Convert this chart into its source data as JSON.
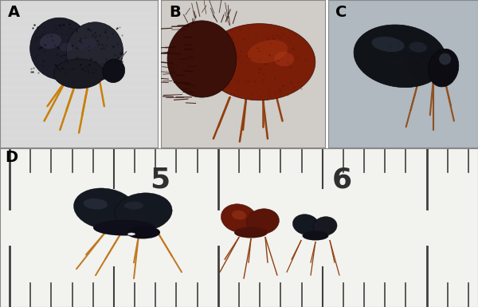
{
  "figure_width": 6.0,
  "figure_height": 3.85,
  "dpi": 100,
  "bg": "#ffffff",
  "label_fs": 14,
  "label_color": "#000000",
  "label_weight": "bold",
  "panelA": {
    "bg": "#d8d8d8",
    "body1": "#1c1c28",
    "body2": "#252530",
    "body3": "#1a1a22",
    "sheen1": "#3a3a55",
    "sheen2": "#2a2a40",
    "leg": "#c8800a",
    "label": "A"
  },
  "panelB": {
    "bg": "#d0ccc8",
    "body_main": "#7a1e08",
    "body_hi": "#a03010",
    "thorax": "#3a1008",
    "hair": "#2a0a04",
    "leg": "#904010",
    "label": "B"
  },
  "panelC": {
    "bg": "#b0b8c0",
    "body": "#101418",
    "sheen": "#303848",
    "leg": "#905020",
    "label": "C"
  },
  "panelD": {
    "bg": "#f4f4f4",
    "ruler_bg": "#f8f8f0",
    "ruler_edge": "#888880",
    "tick": "#404040",
    "num_color": "#303030",
    "large_body": "#141820",
    "large_sheen": "#303848",
    "large_leg": "#c07820",
    "med_body": "#6a1808",
    "med_leg": "#904010",
    "small_body": "#141820",
    "small_leg": "#904010",
    "label": "D"
  },
  "border_color": "#888888",
  "border_lw": 0.8
}
